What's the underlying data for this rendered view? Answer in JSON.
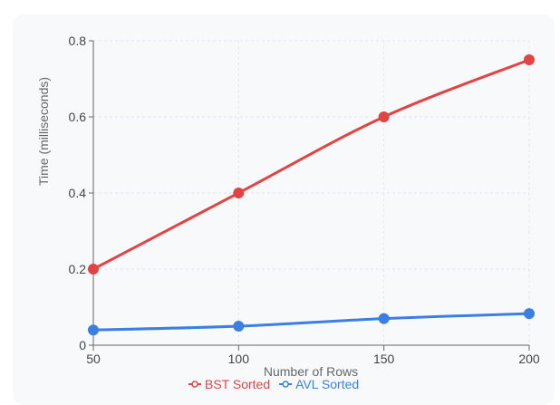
{
  "chart_data": {
    "type": "line",
    "x": [
      50,
      100,
      150,
      200
    ],
    "series": [
      {
        "name": "BST Sorted",
        "color": "#e04444",
        "values": [
          0.2,
          0.4,
          0.6,
          0.75
        ]
      },
      {
        "name": "AVL Sorted",
        "color": "#3b7fe0",
        "values": [
          0.04,
          0.05,
          0.07,
          0.083
        ]
      }
    ],
    "xlabel": "Number of Rows",
    "ylabel": "Time (milliseconds)",
    "xlim": [
      50,
      200
    ],
    "ylim": [
      0,
      0.8
    ],
    "xticks": [
      "50",
      "100",
      "150",
      "200"
    ],
    "yticks": [
      "0",
      "0.2",
      "0.4",
      "0.6",
      "0.8"
    ],
    "grid": true,
    "legend_position": "bottom"
  }
}
